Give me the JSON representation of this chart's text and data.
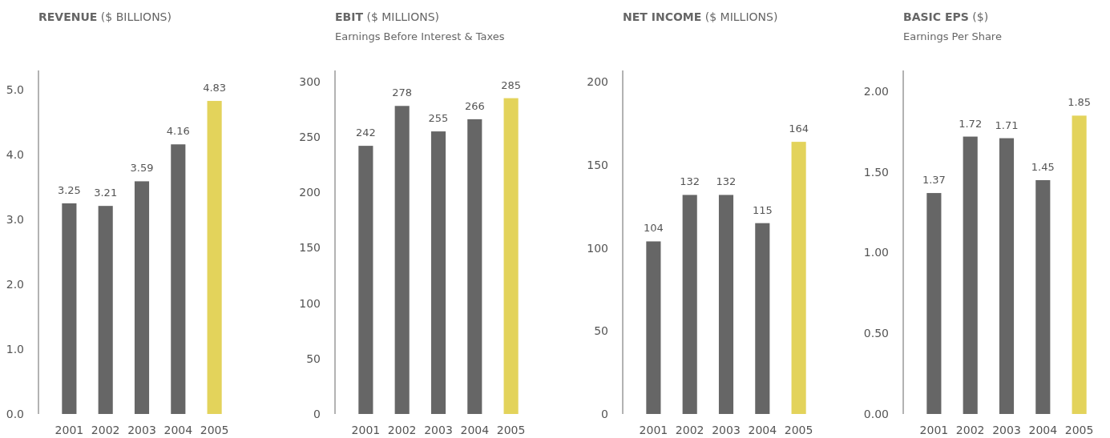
{
  "chart_data": [
    {
      "type": "bar",
      "title": "REVENUE ($ BILLIONS)",
      "categories": [
        "2001",
        "2002",
        "2003",
        "2004",
        "2005"
      ],
      "values": [
        3.25,
        3.21,
        3.59,
        4.16,
        4.83
      ],
      "colors": [
        "#666666",
        "#666666",
        "#666666",
        "#666666",
        "#e3d35b"
      ],
      "ylim": [
        0,
        5.3
      ],
      "yticks": [
        {
          "value": 0,
          "label": "0.0"
        },
        {
          "value": 1,
          "label": "1.0"
        },
        {
          "value": 2,
          "label": "2.0"
        },
        {
          "value": 3,
          "label": "3.0"
        },
        {
          "value": 4,
          "label": "4.0"
        },
        {
          "value": 5,
          "label": "5.0"
        }
      ],
      "data_labels": true
    },
    {
      "type": "bar",
      "title": "EBIT ($ MILLIONS)",
      "subtitle": "Earnings Before Interest & Taxes",
      "categories": [
        "2001",
        "2002",
        "2003",
        "2004",
        "2005"
      ],
      "values": [
        242,
        278,
        255,
        266,
        285
      ],
      "colors": [
        "#666666",
        "#666666",
        "#666666",
        "#666666",
        "#e3d35b"
      ],
      "ylim": [
        0,
        310
      ],
      "yticks": [
        0,
        50,
        100,
        150,
        200,
        250,
        300
      ],
      "data_labels": true
    },
    {
      "type": "bar",
      "title": "NET INCOME ($ MILLIONS)",
      "categories": [
        "2001",
        "2002",
        "2003",
        "2004",
        "2005"
      ],
      "values": [
        104,
        132,
        132,
        115,
        164
      ],
      "colors": [
        "#666666",
        "#666666",
        "#666666",
        "#666666",
        "#e3d35b"
      ],
      "ylim": [
        0,
        207
      ],
      "yticks": [
        0,
        50,
        100,
        150,
        200
      ],
      "data_labels": true
    },
    {
      "type": "bar",
      "title": "BASIC EPS ($)",
      "subtitle": "Earnings Per Share",
      "categories": [
        "2001",
        "2002",
        "2003",
        "2004",
        "2005"
      ],
      "values": [
        1.37,
        1.72,
        1.71,
        1.45,
        1.85
      ],
      "colors": [
        "#666666",
        "#666666",
        "#666666",
        "#666666",
        "#e3d35b"
      ],
      "ylim": [
        0,
        2.13
      ],
      "yticks": [
        {
          "value": 0,
          "label": "0.00"
        },
        {
          "value": 0.5,
          "label": "0.50"
        },
        {
          "value": 1,
          "label": "1.00"
        },
        {
          "value": 1.5,
          "label": "1.50"
        },
        {
          "value": 2,
          "label": "2.00"
        }
      ],
      "data_labels": true
    }
  ]
}
